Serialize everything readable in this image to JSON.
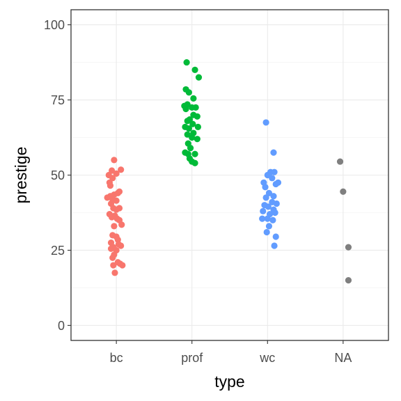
{
  "chart_data": {
    "type": "scatter",
    "subtype": "jitter-strip",
    "xlabel": "type",
    "ylabel": "prestige",
    "categories": [
      "bc",
      "prof",
      "wc",
      "NA"
    ],
    "ylim": [
      -5,
      105
    ],
    "yticks": [
      0,
      25,
      50,
      75,
      100
    ],
    "grid": true,
    "legend": "none",
    "series": [
      {
        "category": "bc",
        "color": "#F8766D",
        "points": [
          {
            "dx": -0.03,
            "y": 55
          },
          {
            "dx": -0.06,
            "y": 51.5
          },
          {
            "dx": 0.0,
            "y": 50.5
          },
          {
            "dx": 0.06,
            "y": 51.8
          },
          {
            "dx": -0.1,
            "y": 50
          },
          {
            "dx": -0.05,
            "y": 49
          },
          {
            "dx": -0.09,
            "y": 47.5
          },
          {
            "dx": -0.08,
            "y": 46.5
          },
          {
            "dx": 0.02,
            "y": 44
          },
          {
            "dx": 0.04,
            "y": 44.5
          },
          {
            "dx": -0.03,
            "y": 43.5
          },
          {
            "dx": -0.08,
            "y": 43
          },
          {
            "dx": -0.12,
            "y": 42.5
          },
          {
            "dx": -0.05,
            "y": 42
          },
          {
            "dx": 0.0,
            "y": 41.5
          },
          {
            "dx": -0.07,
            "y": 40.5
          },
          {
            "dx": -0.04,
            "y": 39
          },
          {
            "dx": 0.04,
            "y": 39
          },
          {
            "dx": 0.0,
            "y": 38.5
          },
          {
            "dx": -0.09,
            "y": 37
          },
          {
            "dx": -0.02,
            "y": 36.5
          },
          {
            "dx": -0.06,
            "y": 36
          },
          {
            "dx": 0.01,
            "y": 35.5
          },
          {
            "dx": 0.04,
            "y": 35
          },
          {
            "dx": 0.07,
            "y": 33.5
          },
          {
            "dx": -0.03,
            "y": 33
          },
          {
            "dx": -0.05,
            "y": 30
          },
          {
            "dx": 0.0,
            "y": 29.5
          },
          {
            "dx": 0.02,
            "y": 28.5
          },
          {
            "dx": -0.07,
            "y": 27.5
          },
          {
            "dx": 0.03,
            "y": 27
          },
          {
            "dx": 0.06,
            "y": 26.5
          },
          {
            "dx": -0.04,
            "y": 26
          },
          {
            "dx": -0.07,
            "y": 25.5
          },
          {
            "dx": 0.0,
            "y": 25
          },
          {
            "dx": -0.03,
            "y": 23.5
          },
          {
            "dx": -0.05,
            "y": 22.5
          },
          {
            "dx": 0.02,
            "y": 21
          },
          {
            "dx": 0.05,
            "y": 20.5
          },
          {
            "dx": 0.08,
            "y": 20
          },
          {
            "dx": -0.04,
            "y": 20
          },
          {
            "dx": -0.02,
            "y": 17.5
          }
        ]
      },
      {
        "category": "prof",
        "color": "#00BA38",
        "points": [
          {
            "dx": -0.07,
            "y": 87.5
          },
          {
            "dx": 0.04,
            "y": 85
          },
          {
            "dx": 0.09,
            "y": 82.5
          },
          {
            "dx": -0.08,
            "y": 78.5
          },
          {
            "dx": -0.04,
            "y": 77.5
          },
          {
            "dx": 0.02,
            "y": 75.5
          },
          {
            "dx": -0.06,
            "y": 73.5
          },
          {
            "dx": -0.1,
            "y": 73
          },
          {
            "dx": 0.0,
            "y": 72.5
          },
          {
            "dx": 0.05,
            "y": 72.5
          },
          {
            "dx": -0.08,
            "y": 72
          },
          {
            "dx": 0.02,
            "y": 70
          },
          {
            "dx": 0.07,
            "y": 69.5
          },
          {
            "dx": -0.03,
            "y": 68.5
          },
          {
            "dx": -0.06,
            "y": 68
          },
          {
            "dx": 0.01,
            "y": 67
          },
          {
            "dx": 0.08,
            "y": 66
          },
          {
            "dx": -0.09,
            "y": 66
          },
          {
            "dx": -0.04,
            "y": 65.5
          },
          {
            "dx": 0.02,
            "y": 64
          },
          {
            "dx": -0.06,
            "y": 63.5
          },
          {
            "dx": 0.0,
            "y": 62.5
          },
          {
            "dx": 0.07,
            "y": 62
          },
          {
            "dx": -0.05,
            "y": 60.5
          },
          {
            "dx": -0.02,
            "y": 59
          },
          {
            "dx": -0.09,
            "y": 57.5
          },
          {
            "dx": 0.04,
            "y": 57
          },
          {
            "dx": -0.05,
            "y": 57
          },
          {
            "dx": -0.03,
            "y": 55.5
          },
          {
            "dx": 0.0,
            "y": 54.5
          },
          {
            "dx": 0.04,
            "y": 54
          }
        ]
      },
      {
        "category": "wc",
        "color": "#619CFF",
        "points": [
          {
            "dx": -0.02,
            "y": 67.5
          },
          {
            "dx": 0.08,
            "y": 57.5
          },
          {
            "dx": 0.04,
            "y": 51
          },
          {
            "dx": 0.09,
            "y": 51
          },
          {
            "dx": 0.0,
            "y": 50
          },
          {
            "dx": 0.06,
            "y": 49
          },
          {
            "dx": -0.05,
            "y": 47.5
          },
          {
            "dx": 0.14,
            "y": 47.5
          },
          {
            "dx": 0.11,
            "y": 47
          },
          {
            "dx": -0.03,
            "y": 46
          },
          {
            "dx": 0.02,
            "y": 44
          },
          {
            "dx": 0.08,
            "y": 43
          },
          {
            "dx": -0.02,
            "y": 42.5
          },
          {
            "dx": 0.06,
            "y": 41
          },
          {
            "dx": 0.12,
            "y": 40.5
          },
          {
            "dx": -0.04,
            "y": 40
          },
          {
            "dx": 0.01,
            "y": 39.5
          },
          {
            "dx": 0.08,
            "y": 38.5
          },
          {
            "dx": -0.06,
            "y": 38
          },
          {
            "dx": 0.03,
            "y": 37
          },
          {
            "dx": 0.1,
            "y": 37.5
          },
          {
            "dx": -0.07,
            "y": 35.5
          },
          {
            "dx": 0.0,
            "y": 35.5
          },
          {
            "dx": 0.07,
            "y": 35
          },
          {
            "dx": 0.02,
            "y": 33
          },
          {
            "dx": -0.01,
            "y": 31
          },
          {
            "dx": 0.11,
            "y": 29.5
          },
          {
            "dx": 0.09,
            "y": 26.5
          }
        ]
      },
      {
        "category": "NA",
        "color": "#7F7F7F",
        "points": [
          {
            "dx": -0.04,
            "y": 54.5
          },
          {
            "dx": 0.0,
            "y": 44.5
          },
          {
            "dx": 0.07,
            "y": 26
          },
          {
            "dx": 0.07,
            "y": 15
          }
        ]
      }
    ]
  }
}
